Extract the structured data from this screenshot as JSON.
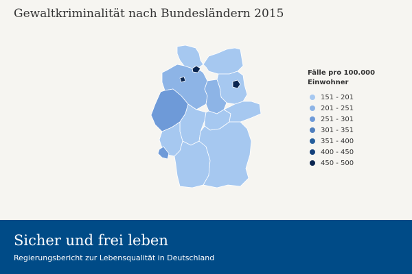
{
  "page": {
    "title": "Gewaltkriminalität nach Bundesländern 2015",
    "background": "#f6f5f1"
  },
  "legend": {
    "title": "Fälle pro 100.000 Einwohner",
    "items": [
      {
        "label": "151 - 201",
        "color": "#a6c8f0"
      },
      {
        "label": "201 - 251",
        "color": "#8db4e6"
      },
      {
        "label": "251 - 301",
        "color": "#6e9ad8"
      },
      {
        "label": "301 - 351",
        "color": "#4f7fbe"
      },
      {
        "label": "351 - 400",
        "color": "#245e9c"
      },
      {
        "label": "400 - 450",
        "color": "#123f7a"
      },
      {
        "label": "450 - 500",
        "color": "#0a2550"
      }
    ]
  },
  "map": {
    "regions": [
      {
        "name": "Schleswig-Holstein",
        "value_class": "151 - 201",
        "color": "#a6c8f0"
      },
      {
        "name": "Mecklenburg-Vorpommern",
        "value_class": "151 - 201",
        "color": "#a6c8f0"
      },
      {
        "name": "Hamburg",
        "value_class": "450 - 500",
        "color": "#0a2550"
      },
      {
        "name": "Bremen",
        "value_class": "450 - 500",
        "color": "#0a2550"
      },
      {
        "name": "Niedersachsen",
        "value_class": "201 - 251",
        "color": "#8db4e6"
      },
      {
        "name": "Brandenburg",
        "value_class": "151 - 201",
        "color": "#a6c8f0"
      },
      {
        "name": "Berlin",
        "value_class": "450 - 500",
        "color": "#0a2550"
      },
      {
        "name": "Sachsen-Anhalt",
        "value_class": "201 - 251",
        "color": "#8db4e6"
      },
      {
        "name": "Nordrhein-Westfalen",
        "value_class": "251 - 301",
        "color": "#6e9ad8"
      },
      {
        "name": "Hessen",
        "value_class": "151 - 201",
        "color": "#a6c8f0"
      },
      {
        "name": "Thüringen",
        "value_class": "151 - 201",
        "color": "#a6c8f0"
      },
      {
        "name": "Sachsen",
        "value_class": "151 - 201",
        "color": "#a6c8f0"
      },
      {
        "name": "Rheinland-Pfalz",
        "value_class": "151 - 201",
        "color": "#a6c8f0"
      },
      {
        "name": "Saarland",
        "value_class": "251 - 301",
        "color": "#6e9ad8"
      },
      {
        "name": "Bayern",
        "value_class": "151 - 201",
        "color": "#a6c8f0"
      },
      {
        "name": "Baden-Württemberg",
        "value_class": "151 - 201",
        "color": "#a6c8f0"
      }
    ]
  },
  "footer": {
    "title": "Sicher und frei leben",
    "subtitle": "Regierungsbericht zur Lebensqualität in Deutschland",
    "background": "#004b87"
  }
}
